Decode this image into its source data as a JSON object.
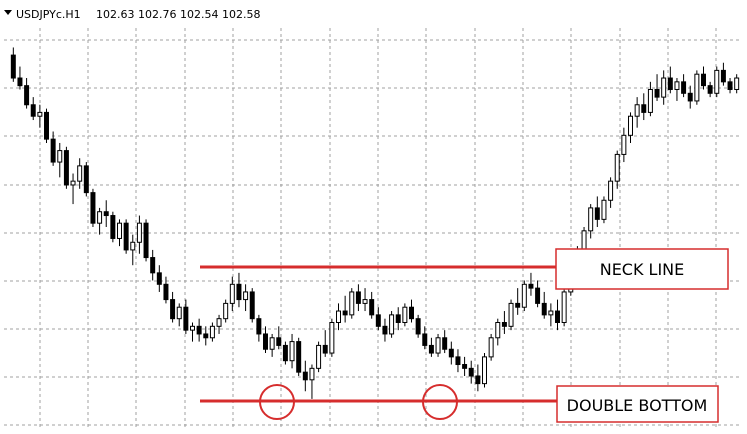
{
  "header": {
    "symbol": "USDJPYc.H1",
    "ohlc": "102.63 102.76 102.54 102.58"
  },
  "colors": {
    "bull_candle": "#ffffff",
    "bear_candle": "#000000",
    "annotation": "#d62d2d",
    "grid": "#a0a0a0"
  },
  "annotations": {
    "neck_line_label": "NECK LINE",
    "double_bottom_label": "DOUBLE BOTTOM"
  },
  "chart_data": {
    "type": "candlestick",
    "title": "",
    "grid": true,
    "xlabel": "",
    "ylabel": "",
    "ylim": [
      0,
      100
    ],
    "neck_line_level": 36,
    "double_bottom_level": 8,
    "candles": [
      [
        95,
        97,
        88,
        89
      ],
      [
        89,
        92,
        86,
        87
      ],
      [
        87,
        89,
        81,
        82
      ],
      [
        82,
        84,
        78,
        79
      ],
      [
        79,
        82,
        76,
        80
      ],
      [
        80,
        81,
        72,
        73
      ],
      [
        73,
        75,
        66,
        67
      ],
      [
        67,
        72,
        63,
        70
      ],
      [
        70,
        71,
        60,
        61
      ],
      [
        61,
        64,
        56,
        62
      ],
      [
        62,
        68,
        60,
        66
      ],
      [
        66,
        67,
        58,
        59
      ],
      [
        59,
        60,
        50,
        51
      ],
      [
        51,
        55,
        48,
        54
      ],
      [
        54,
        57,
        50,
        53
      ],
      [
        53,
        54,
        46,
        47
      ],
      [
        47,
        52,
        45,
        51
      ],
      [
        51,
        52,
        43,
        44
      ],
      [
        44,
        48,
        40,
        46
      ],
      [
        46,
        53,
        43,
        51
      ],
      [
        51,
        52,
        41,
        42
      ],
      [
        42,
        44,
        36,
        38
      ],
      [
        38,
        40,
        33,
        35
      ],
      [
        35,
        37,
        30,
        31
      ],
      [
        31,
        33,
        25,
        26
      ],
      [
        26,
        30,
        24,
        29
      ],
      [
        29,
        31,
        22,
        23
      ],
      [
        23,
        25,
        20,
        24
      ],
      [
        24,
        26,
        20,
        22
      ],
      [
        22,
        24,
        19,
        21
      ],
      [
        21,
        25,
        20,
        24
      ],
      [
        24,
        27,
        22,
        26
      ],
      [
        26,
        31,
        25,
        30
      ],
      [
        30,
        37,
        28,
        35
      ],
      [
        35,
        38,
        29,
        31
      ],
      [
        31,
        35,
        28,
        33
      ],
      [
        33,
        34,
        25,
        26
      ],
      [
        26,
        27,
        20,
        22
      ],
      [
        22,
        24,
        17,
        18
      ],
      [
        18,
        22,
        16,
        21
      ],
      [
        21,
        24,
        18,
        19
      ],
      [
        19,
        20,
        14,
        15
      ],
      [
        15,
        22,
        13,
        20
      ],
      [
        20,
        21,
        11,
        12
      ],
      [
        12,
        15,
        7,
        10
      ],
      [
        10,
        14,
        5,
        13
      ],
      [
        13,
        20,
        12,
        19
      ],
      [
        19,
        23,
        16,
        17
      ],
      [
        17,
        26,
        16,
        25
      ],
      [
        25,
        30,
        23,
        28
      ],
      [
        28,
        32,
        25,
        27
      ],
      [
        27,
        34,
        26,
        33
      ],
      [
        33,
        35,
        28,
        30
      ],
      [
        30,
        34,
        28,
        31
      ],
      [
        31,
        33,
        26,
        27
      ],
      [
        27,
        29,
        23,
        24
      ],
      [
        24,
        26,
        20,
        22
      ],
      [
        22,
        28,
        21,
        27
      ],
      [
        27,
        29,
        23,
        25
      ],
      [
        25,
        30,
        24,
        29
      ],
      [
        29,
        31,
        25,
        26
      ],
      [
        26,
        27,
        21,
        22
      ],
      [
        22,
        24,
        18,
        19
      ],
      [
        19,
        21,
        16,
        17
      ],
      [
        17,
        22,
        16,
        21
      ],
      [
        21,
        23,
        17,
        18
      ],
      [
        18,
        20,
        14,
        16
      ],
      [
        16,
        18,
        12,
        14
      ],
      [
        14,
        16,
        11,
        13
      ],
      [
        13,
        15,
        9,
        11
      ],
      [
        11,
        14,
        7,
        9
      ],
      [
        9,
        17,
        8,
        16
      ],
      [
        16,
        22,
        15,
        21
      ],
      [
        21,
        26,
        19,
        25
      ],
      [
        25,
        28,
        22,
        24
      ],
      [
        24,
        31,
        23,
        30
      ],
      [
        30,
        34,
        27,
        29
      ],
      [
        29,
        36,
        28,
        35
      ],
      [
        35,
        38,
        32,
        34
      ],
      [
        34,
        36,
        29,
        30
      ],
      [
        30,
        33,
        26,
        27
      ],
      [
        27,
        30,
        24,
        28
      ],
      [
        28,
        31,
        23,
        25
      ],
      [
        25,
        34,
        24,
        33
      ],
      [
        33,
        41,
        32,
        40
      ],
      [
        40,
        45,
        38,
        44
      ],
      [
        44,
        50,
        43,
        49
      ],
      [
        49,
        56,
        47,
        55
      ],
      [
        55,
        58,
        50,
        52
      ],
      [
        52,
        58,
        51,
        57
      ],
      [
        57,
        63,
        55,
        62
      ],
      [
        62,
        70,
        60,
        69
      ],
      [
        69,
        76,
        67,
        74
      ],
      [
        74,
        80,
        72,
        79
      ],
      [
        79,
        84,
        76,
        82
      ],
      [
        82,
        85,
        78,
        80
      ],
      [
        80,
        88,
        79,
        86
      ],
      [
        86,
        90,
        83,
        84
      ],
      [
        84,
        91,
        82,
        89
      ],
      [
        89,
        92,
        85,
        86
      ],
      [
        86,
        89,
        83,
        88
      ],
      [
        88,
        90,
        84,
        85
      ],
      [
        85,
        87,
        81,
        83
      ],
      [
        83,
        91,
        82,
        90
      ],
      [
        90,
        92,
        86,
        87
      ],
      [
        87,
        88,
        84,
        85
      ],
      [
        85,
        92,
        84,
        91
      ],
      [
        91,
        93,
        87,
        88
      ],
      [
        88,
        89,
        85,
        86
      ],
      [
        86,
        90,
        85,
        89
      ]
    ]
  }
}
